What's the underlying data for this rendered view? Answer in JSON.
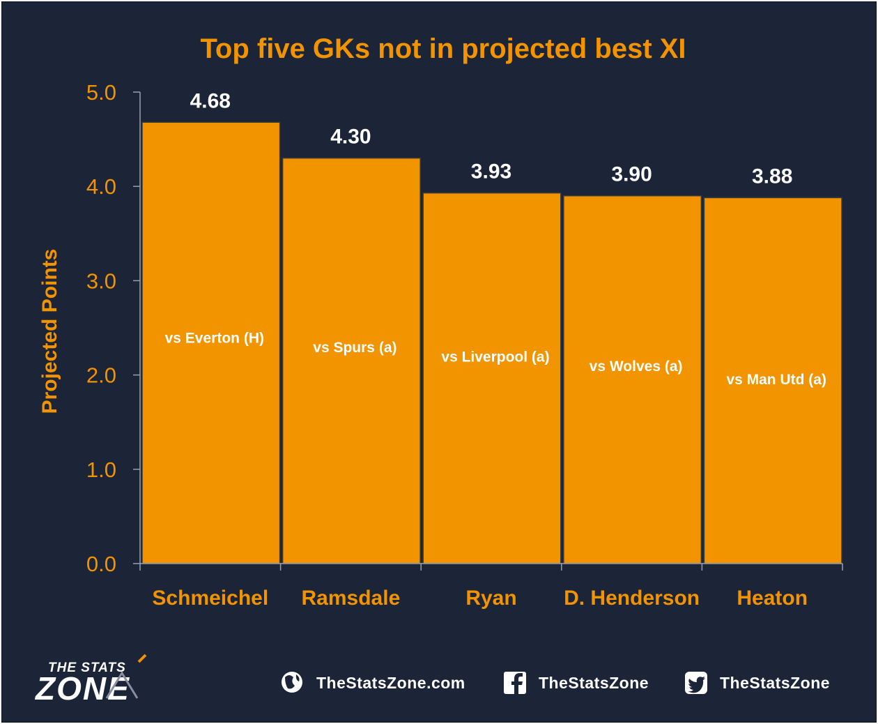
{
  "chart_data": {
    "type": "bar",
    "title": "Top five GKs not in projected best XI",
    "ylabel": "Projected Points",
    "xlabel": "",
    "ylim": [
      0,
      5
    ],
    "yticks": [
      "0.0",
      "1.0",
      "2.0",
      "3.0",
      "4.0",
      "5.0"
    ],
    "grid": false,
    "categories": [
      "Schmeichel",
      "Ramsdale",
      "Ryan",
      "D. Henderson",
      "Heaton"
    ],
    "values": [
      4.68,
      4.3,
      3.93,
      3.9,
      3.88
    ],
    "value_labels": [
      "4.68",
      "4.30",
      "3.93",
      "3.90",
      "3.88"
    ],
    "fixtures": [
      "vs Everton (H)",
      "vs Spurs (a)",
      "vs Liverpool (a)",
      "vs Wolves (a)",
      "vs Man Utd (a)"
    ],
    "fixture_levels": [
      2.4,
      2.3,
      2.2,
      2.1,
      1.96
    ]
  },
  "footer": {
    "logo_top": "THE STATS",
    "logo_bottom": "ZONE",
    "website": "TheStatsZone.com",
    "facebook": "TheStatsZone",
    "twitter": "TheStatsZone"
  },
  "colors": {
    "background": "#1c2438",
    "accent": "#f29400",
    "value_text": "#ffffff"
  },
  "icons": [
    "globe-icon",
    "facebook-icon",
    "twitter-icon"
  ]
}
